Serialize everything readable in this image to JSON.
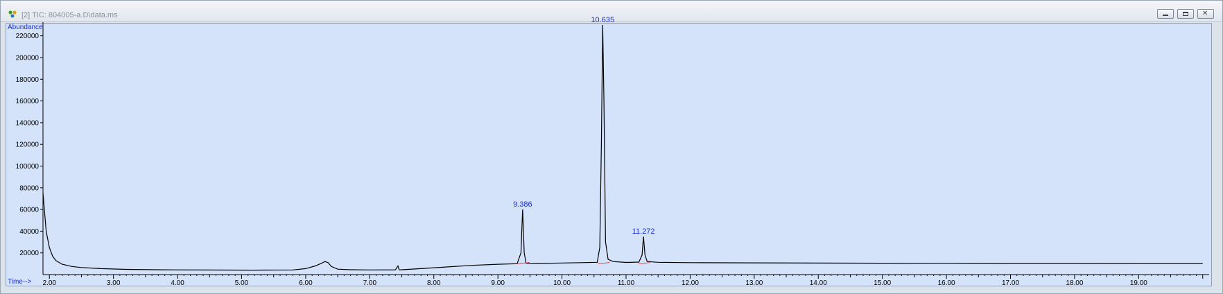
{
  "window": {
    "title": "[2] TIC: 804005-a.D\\data.ms"
  },
  "icons": {
    "app": "chromatogram-app-icon",
    "minimize": "minimize-icon",
    "restore": "restore-icon",
    "close": "close-icon"
  },
  "colors": {
    "plot_background": "#d4e2fa",
    "trace": "#000000",
    "label_text": "#1a2fd0",
    "baseline_marker": "#e0303a"
  },
  "chart_data": {
    "type": "line",
    "ylabel": "Abundance",
    "xlabel": "Time-->",
    "xlim": [
      1.9,
      20.1
    ],
    "ylim": [
      0,
      230000
    ],
    "yticks": [
      20000,
      40000,
      60000,
      80000,
      100000,
      120000,
      140000,
      160000,
      180000,
      200000,
      220000
    ],
    "ytick_labels": [
      "20000",
      "40000",
      "60000",
      "80000",
      "100000",
      "120000",
      "140000",
      "160000",
      "180000",
      "200000",
      "220000"
    ],
    "xticks": [
      2,
      3,
      4,
      5,
      6,
      7,
      8,
      9,
      10,
      11,
      12,
      13,
      14,
      15,
      16,
      17,
      18,
      19
    ],
    "xtick_labels": [
      "2.00",
      "3.00",
      "4.00",
      "5.00",
      "6.00",
      "7.00",
      "8.00",
      "9.00",
      "10.00",
      "11.00",
      "12.00",
      "13.00",
      "14.00",
      "15.00",
      "16.00",
      "17.00",
      "18.00",
      "19.00"
    ],
    "grid": false,
    "peaks": [
      {
        "label": "9.386",
        "rt": 9.386,
        "height": 60000
      },
      {
        "label": "10.635",
        "rt": 10.635,
        "height": 230000
      },
      {
        "label": "11.272",
        "rt": 11.272,
        "height": 35000
      }
    ],
    "series": [
      {
        "x": [
          1.9,
          1.95,
          2.0,
          2.05,
          2.1,
          2.2,
          2.35,
          2.5,
          2.8,
          3.2,
          3.8,
          4.5,
          5.2,
          5.8,
          6.0,
          6.15,
          6.25,
          6.3,
          6.35,
          6.4,
          6.5,
          6.7,
          7.0,
          7.4,
          7.44,
          7.46,
          7.5,
          7.8,
          8.2,
          8.6,
          9.0,
          9.3,
          9.36,
          9.386,
          9.41,
          9.44,
          9.6,
          10.0,
          10.3,
          10.55,
          10.59,
          10.615,
          10.635,
          10.655,
          10.68,
          10.72,
          10.8,
          11.0,
          11.2,
          11.25,
          11.272,
          11.295,
          11.33,
          11.5,
          12.0,
          13.0,
          14.0,
          15.0,
          16.0,
          17.0,
          18.0,
          19.0,
          20.0
        ],
        "y": [
          75000,
          40000,
          25000,
          17000,
          13000,
          9500,
          7500,
          6500,
          5500,
          4800,
          4400,
          4200,
          4100,
          4300,
          5500,
          8000,
          10500,
          12000,
          11000,
          7500,
          5000,
          4500,
          4300,
          4400,
          8000,
          4400,
          4500,
          5500,
          7000,
          8500,
          9500,
          10000,
          20000,
          60000,
          20000,
          10500,
          10200,
          10700,
          11000,
          11300,
          25000,
          120000,
          230000,
          160000,
          30000,
          14000,
          12000,
          11200,
          11500,
          18000,
          35000,
          18000,
          12000,
          11300,
          11000,
          10800,
          10600,
          10500,
          10400,
          10300,
          10300,
          10200,
          10200
        ]
      }
    ]
  }
}
